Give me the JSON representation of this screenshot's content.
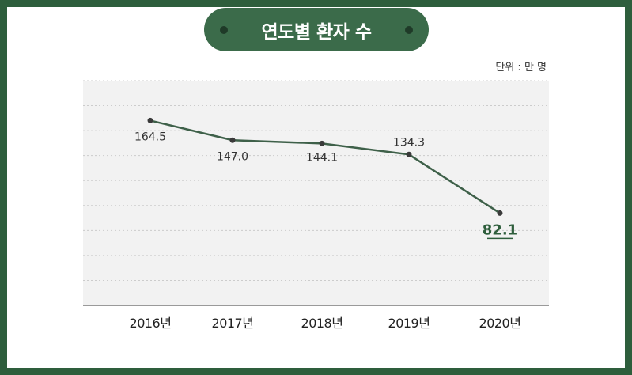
{
  "header": {
    "title": "연도별 환자 수",
    "unit": "단위 : 만 명"
  },
  "colors": {
    "frame": "#2e5e3c",
    "pill": "#3b6b4a",
    "line": "#3e6049",
    "highlight": "#2e5e3c",
    "plot_bg": "#f2f2f2"
  },
  "chart_data": {
    "type": "line",
    "title": "연도별 환자 수",
    "ylabel": "단위 : 만 명",
    "xlabel": "",
    "categories": [
      "2016년",
      "2017년",
      "2018년",
      "2019년",
      "2020년"
    ],
    "series": [
      {
        "name": "환자 수",
        "values": [
          164.5,
          147.0,
          144.1,
          134.3,
          82.1
        ]
      }
    ],
    "data_labels": [
      "164.5",
      "147.0",
      "144.1",
      "134.3",
      "82.1"
    ],
    "highlight_index": 4,
    "ylim": [
      0,
      200
    ],
    "grid": true,
    "gridline_count": 9
  }
}
